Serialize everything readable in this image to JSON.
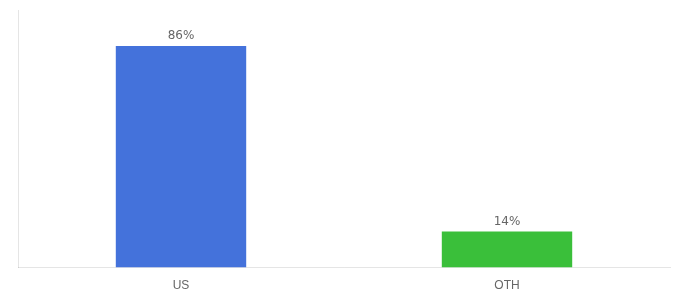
{
  "chart_data": {
    "type": "bar",
    "categories": [
      "US",
      "OTH"
    ],
    "values": [
      86,
      14
    ],
    "value_labels": [
      "86%",
      "14%"
    ],
    "colors": [
      "#4472db",
      "#3abf3a"
    ],
    "ylim": [
      0,
      100
    ],
    "data_labels": true,
    "tick_labels": "x",
    "grid": false
  }
}
